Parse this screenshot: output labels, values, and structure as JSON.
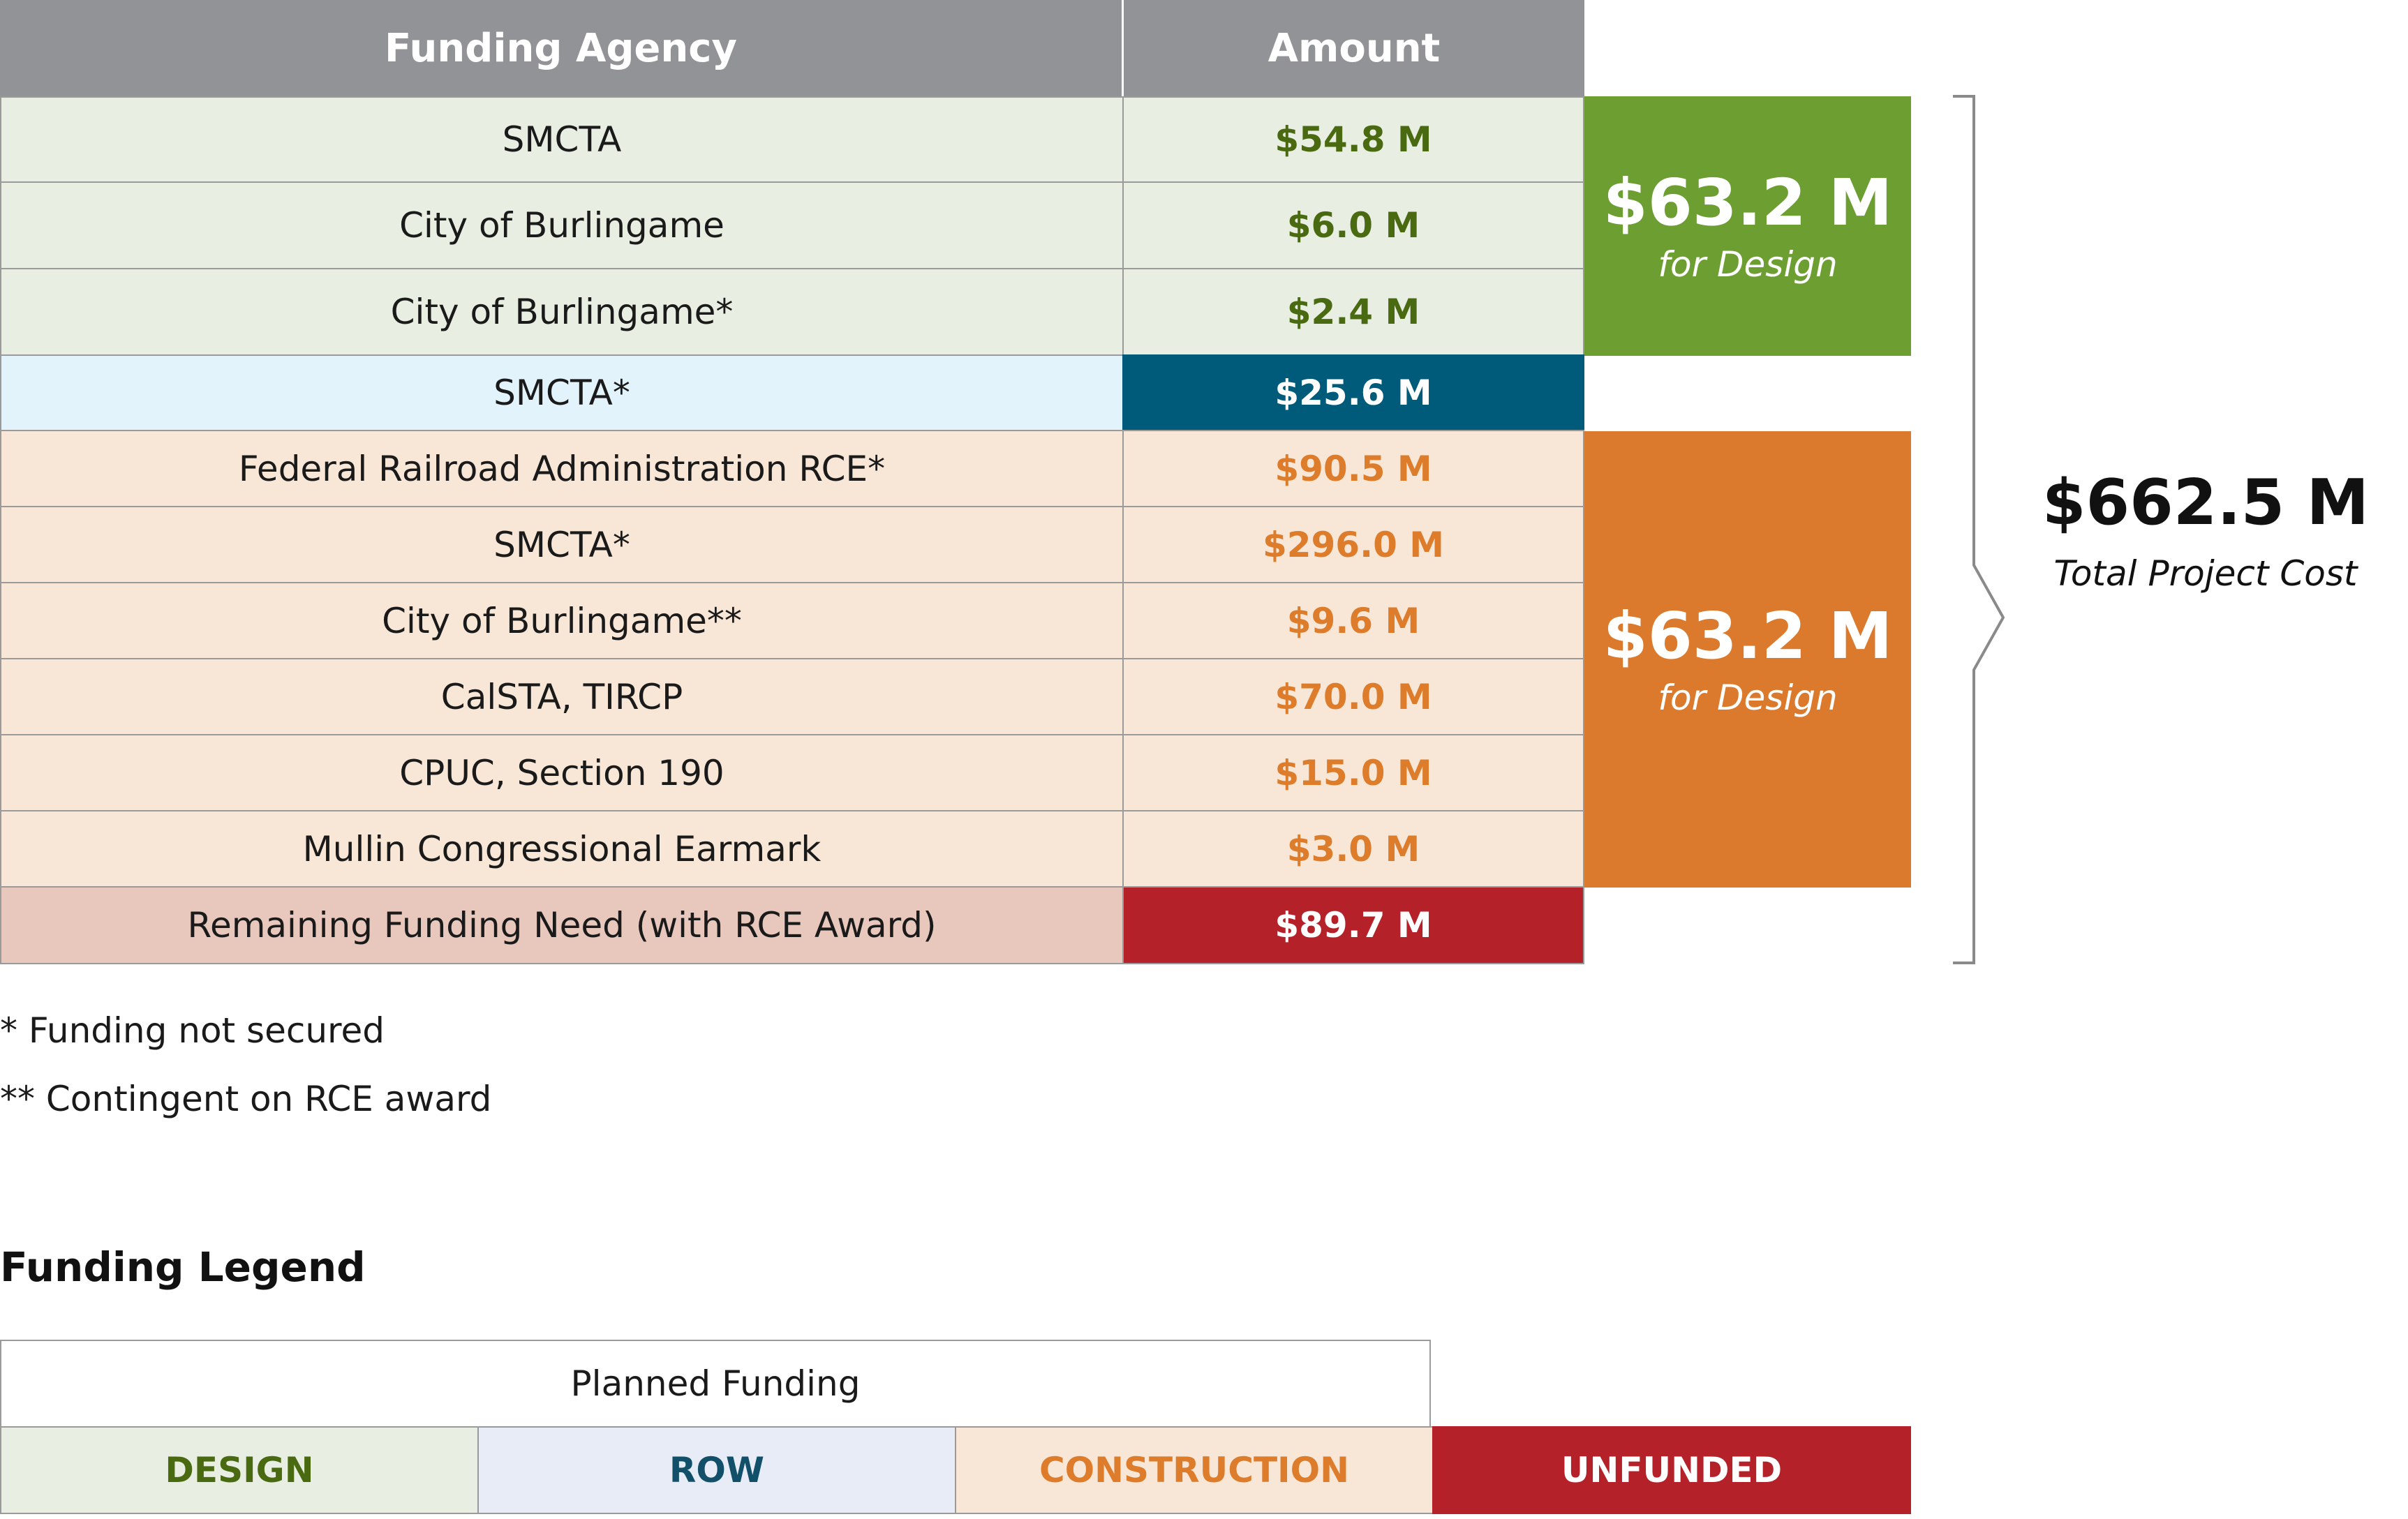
{
  "table": {
    "headers": {
      "agency": "Funding Agency",
      "amount": "Amount"
    },
    "rows": [
      {
        "agency": "SMCTA",
        "amount": "$54.8 M",
        "category": "design"
      },
      {
        "agency": "City of Burlingame",
        "amount": "$6.0 M",
        "category": "design"
      },
      {
        "agency": "City of Burlingame*",
        "amount": "$2.4 M",
        "category": "design"
      },
      {
        "agency": "SMCTA*",
        "amount": "$25.6 M",
        "category": "row"
      },
      {
        "agency": "Federal Railroad Administration RCE*",
        "amount": "$90.5 M",
        "category": "construction"
      },
      {
        "agency": "SMCTA*",
        "amount": "$296.0 M",
        "category": "construction"
      },
      {
        "agency": "City of Burlingame**",
        "amount": "$9.6 M",
        "category": "construction"
      },
      {
        "agency": "CalSTA, TIRCP",
        "amount": "$70.0 M",
        "category": "construction"
      },
      {
        "agency": "CPUC, Section 190",
        "amount": "$15.0 M",
        "category": "construction"
      },
      {
        "agency": "Mullin Congressional Earmark",
        "amount": "$3.0 M",
        "category": "construction"
      },
      {
        "agency": "Remaining Funding Need (with RCE Award)",
        "amount": "$89.7 M",
        "category": "unfunded"
      }
    ]
  },
  "summaries": {
    "design": {
      "value": "$63.2 M",
      "label": "for Design"
    },
    "construction": {
      "value": "$63.2 M",
      "label": "for Design"
    }
  },
  "total": {
    "value": "$662.5 M",
    "label": "Total Project Cost"
  },
  "notes": {
    "note1": "* Funding not secured",
    "note2": "** Contingent on RCE award"
  },
  "legend": {
    "title": "Funding Legend",
    "planned": "Planned Funding",
    "design": "DESIGN",
    "row": "ROW",
    "construction": "CONSTRUCTION",
    "unfunded": "UNFUNDED"
  },
  "colors": {
    "header": "#929396",
    "design_fill": "#e8eee1",
    "design_accent": "#6c9e32",
    "row_fill": "#e2f3fb",
    "row_accent": "#005a7a",
    "construction_fill": "#f8e6d6",
    "construction_accent": "#db7a2c",
    "unfunded": "#b42128"
  }
}
